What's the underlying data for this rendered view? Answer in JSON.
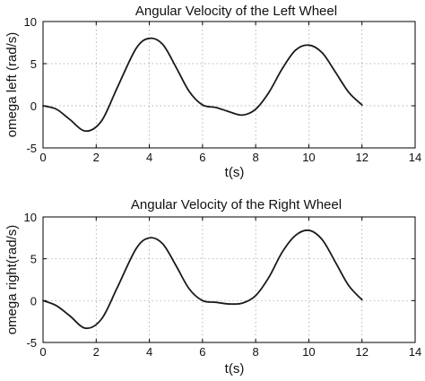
{
  "chart_data": [
    {
      "type": "line",
      "title": "Angular Velocity of the Left Wheel",
      "xlabel": "t(s)",
      "ylabel": "omega left  (rad/s)",
      "xlim": [
        0,
        14
      ],
      "ylim": [
        -5,
        10
      ],
      "xticks": [
        "0",
        "2",
        "4",
        "6",
        "8",
        "10",
        "12",
        "14"
      ],
      "yticks": [
        "-5",
        "0",
        "5",
        "10"
      ],
      "grid": true,
      "series": [
        {
          "x": [
            0,
            0.5,
            1.0,
            1.6,
            2.2,
            2.8,
            3.5,
            4.0,
            4.5,
            5.0,
            5.5,
            6.0,
            6.5,
            7.0,
            7.5,
            8.0,
            8.5,
            9.0,
            9.5,
            10.0,
            10.5,
            11.0,
            11.5,
            12.0
          ],
          "y": [
            0,
            -0.4,
            -1.6,
            -3.0,
            -1.8,
            2.2,
            6.8,
            8.0,
            7.3,
            4.6,
            1.7,
            0.1,
            -0.2,
            -0.7,
            -1.1,
            -0.4,
            1.6,
            4.4,
            6.6,
            7.2,
            6.3,
            4.0,
            1.6,
            0.1
          ]
        }
      ]
    },
    {
      "type": "line",
      "title": "Angular Velocity of the Right Wheel",
      "xlabel": "t(s)",
      "ylabel": "omega right(rad/s)",
      "xlim": [
        0,
        14
      ],
      "ylim": [
        -5,
        10
      ],
      "xticks": [
        "0",
        "2",
        "4",
        "6",
        "8",
        "10",
        "12",
        "14"
      ],
      "yticks": [
        "-5",
        "0",
        "5",
        "10"
      ],
      "grid": true,
      "series": [
        {
          "x": [
            0,
            0.5,
            1.0,
            1.6,
            2.2,
            2.8,
            3.5,
            4.0,
            4.5,
            5.0,
            5.5,
            6.0,
            6.5,
            7.0,
            7.5,
            8.0,
            8.5,
            9.0,
            9.5,
            10.0,
            10.5,
            11.0,
            11.5,
            12.0
          ],
          "y": [
            0,
            -0.6,
            -1.8,
            -3.3,
            -2.2,
            1.6,
            6.2,
            7.5,
            6.8,
            4.2,
            1.4,
            0.0,
            -0.2,
            -0.4,
            -0.3,
            0.6,
            2.8,
            5.8,
            7.8,
            8.4,
            7.3,
            4.6,
            1.8,
            0.1
          ]
        }
      ]
    }
  ]
}
